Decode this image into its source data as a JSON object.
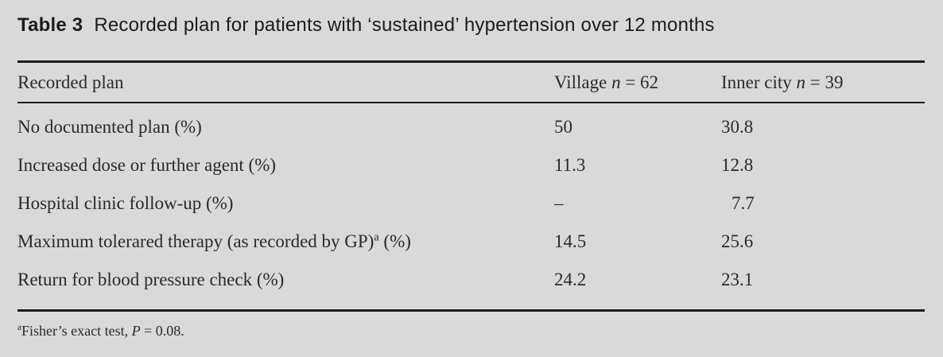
{
  "title": {
    "label": "Table 3",
    "text": "Recorded plan for patients with ‘sustained’ hypertension over 12 months"
  },
  "table": {
    "columns": [
      {
        "text": "Recorded plan"
      },
      {
        "prefix": "Village ",
        "var": "n",
        "suffix": " = 62"
      },
      {
        "prefix": "Inner city ",
        "var": "n",
        "suffix": " = 39"
      }
    ],
    "rows": [
      {
        "label": "No documented plan (%)",
        "village": "50",
        "inner_city": "30.8"
      },
      {
        "label": "Increased dose or further agent (%)",
        "village": "11.3",
        "inner_city": "12.8"
      },
      {
        "label": "Hospital clinic follow-up (%)",
        "village": "–",
        "inner_city": "7.7"
      },
      {
        "label": "Maximum tolerared therapy (as recorded by GP)",
        "label_sup": "a",
        "label_after": " (%)",
        "village": "14.5",
        "inner_city": "25.6"
      },
      {
        "label": "Return for blood pressure check (%)",
        "village": "24.2",
        "inner_city": "23.1"
      }
    ]
  },
  "footnote": {
    "sup": "a",
    "before": "Fisher’s exact test, ",
    "var": "P",
    "after": " = 0.08."
  },
  "colors": {
    "background": "#d9d9d9",
    "text": "#2a2a2a",
    "rule": "#1c1c1c"
  }
}
